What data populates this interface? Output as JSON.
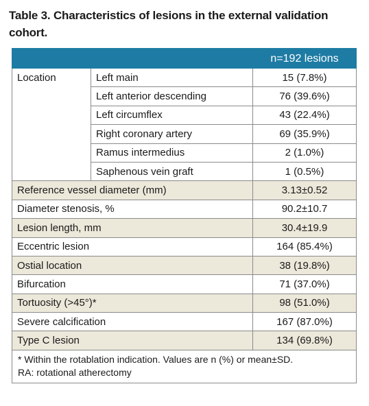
{
  "title": "Table 3. Characteristics of lesions in the external validation cohort.",
  "header": {
    "label": "",
    "value": "n=192 lesions"
  },
  "location": {
    "label": "Location",
    "items": [
      {
        "label": "Left main",
        "value": "15 (7.8%)"
      },
      {
        "label": "Left anterior descending",
        "value": "76 (39.6%)"
      },
      {
        "label": "Left circumflex",
        "value": "43 (22.4%)"
      },
      {
        "label": "Right coronary artery",
        "value": "69 (35.9%)"
      },
      {
        "label": "Ramus intermedius",
        "value": "2 (1.0%)"
      },
      {
        "label": "Saphenous vein graft",
        "value": "1 (0.5%)"
      }
    ]
  },
  "rows": [
    {
      "label": "Reference vessel diameter (mm)",
      "value": "3.13±0.52"
    },
    {
      "label": "Diameter stenosis, %",
      "value": "90.2±10.7"
    },
    {
      "label": "Lesion length, mm",
      "value": "30.4±19.9"
    },
    {
      "label": "Eccentric lesion",
      "value": "164 (85.4%)"
    },
    {
      "label": "Ostial location",
      "value": "38 (19.8%)"
    },
    {
      "label": "Bifurcation",
      "value": "71 (37.0%)"
    },
    {
      "label": "Tortuosity (>45°)*",
      "value": "98 (51.0%)"
    },
    {
      "label": "Severe calcification",
      "value": "167 (87.0%)"
    },
    {
      "label": "Type C lesion",
      "value": "134 (69.8%)"
    }
  ],
  "footnote": {
    "line1": "* Within the rotablation indication. Values are n (%) or mean±SD.",
    "line2": "RA: rotational atherectomy"
  }
}
